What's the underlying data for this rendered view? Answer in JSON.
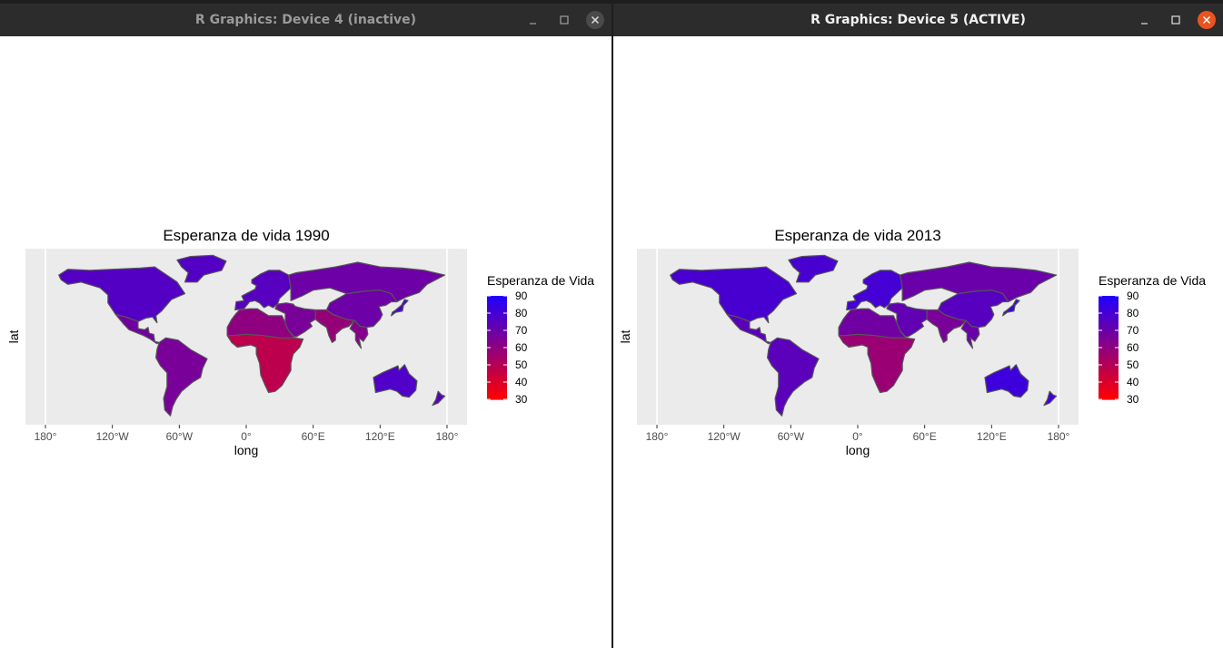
{
  "windows": [
    {
      "title": "R Graphics: Device 4 (inactive)",
      "chart": {
        "title": "Esperanza de vida 1990",
        "xlabel": "long",
        "ylabel": "lat",
        "xticks": [
          "180°",
          "120°W",
          "60°W",
          "0°",
          "60°E",
          "120°E",
          "180°"
        ],
        "legend_title": "Esperanza de Vida",
        "legend_ticks": [
          "90",
          "80",
          "70",
          "60",
          "50",
          "40",
          "30"
        ]
      }
    },
    {
      "title": "R Graphics: Device 5 (ACTIVE)",
      "chart": {
        "title": "Esperanza de vida 2013",
        "xlabel": "long",
        "ylabel": "lat",
        "xticks": [
          "180°",
          "120°W",
          "60°W",
          "0°",
          "60°E",
          "120°E",
          "180°"
        ],
        "legend_title": "Esperanza de Vida",
        "legend_ticks": [
          "90",
          "80",
          "70",
          "60",
          "50",
          "40",
          "30"
        ]
      }
    }
  ],
  "colors": {
    "low": "#ff0000",
    "high": "#1f00ff",
    "panel": "#ebebeb",
    "border": "#555555",
    "close_active": "#e95420",
    "close_inactive": "#4a4a4a"
  },
  "chart_data": [
    {
      "type": "choropleth",
      "title": "Esperanza de vida 1990",
      "xlabel": "long",
      "ylabel": "lat",
      "xlim": [
        -180,
        180
      ],
      "legend": "right",
      "legend_range": [
        30,
        90
      ],
      "regions": [
        {
          "name": "North America",
          "value": 76
        },
        {
          "name": "Greenland",
          "value": 76
        },
        {
          "name": "Central America",
          "value": 68
        },
        {
          "name": "South America",
          "value": 66
        },
        {
          "name": "Europe",
          "value": 75
        },
        {
          "name": "Russia",
          "value": 69
        },
        {
          "name": "North Africa",
          "value": 60
        },
        {
          "name": "Sub-Saharan Africa",
          "value": 48
        },
        {
          "name": "Middle East",
          "value": 66
        },
        {
          "name": "South Asia",
          "value": 58
        },
        {
          "name": "China",
          "value": 69
        },
        {
          "name": "Southeast Asia",
          "value": 63
        },
        {
          "name": "Japan",
          "value": 79
        },
        {
          "name": "Australia",
          "value": 77
        },
        {
          "name": "New Zealand",
          "value": 75
        }
      ]
    },
    {
      "type": "choropleth",
      "title": "Esperanza de vida 2013",
      "xlabel": "long",
      "ylabel": "lat",
      "xlim": [
        -180,
        180
      ],
      "legend": "right",
      "legend_range": [
        30,
        90
      ],
      "regions": [
        {
          "name": "North America",
          "value": 79
        },
        {
          "name": "Greenland",
          "value": 79
        },
        {
          "name": "Central America",
          "value": 74
        },
        {
          "name": "South America",
          "value": 74
        },
        {
          "name": "Europe",
          "value": 80
        },
        {
          "name": "Russia",
          "value": 70
        },
        {
          "name": "North Africa",
          "value": 68
        },
        {
          "name": "Sub-Saharan Africa",
          "value": 57
        },
        {
          "name": "Middle East",
          "value": 72
        },
        {
          "name": "South Asia",
          "value": 66
        },
        {
          "name": "China",
          "value": 75
        },
        {
          "name": "Southeast Asia",
          "value": 70
        },
        {
          "name": "Japan",
          "value": 83
        },
        {
          "name": "Australia",
          "value": 82
        },
        {
          "name": "New Zealand",
          "value": 81
        }
      ]
    }
  ]
}
